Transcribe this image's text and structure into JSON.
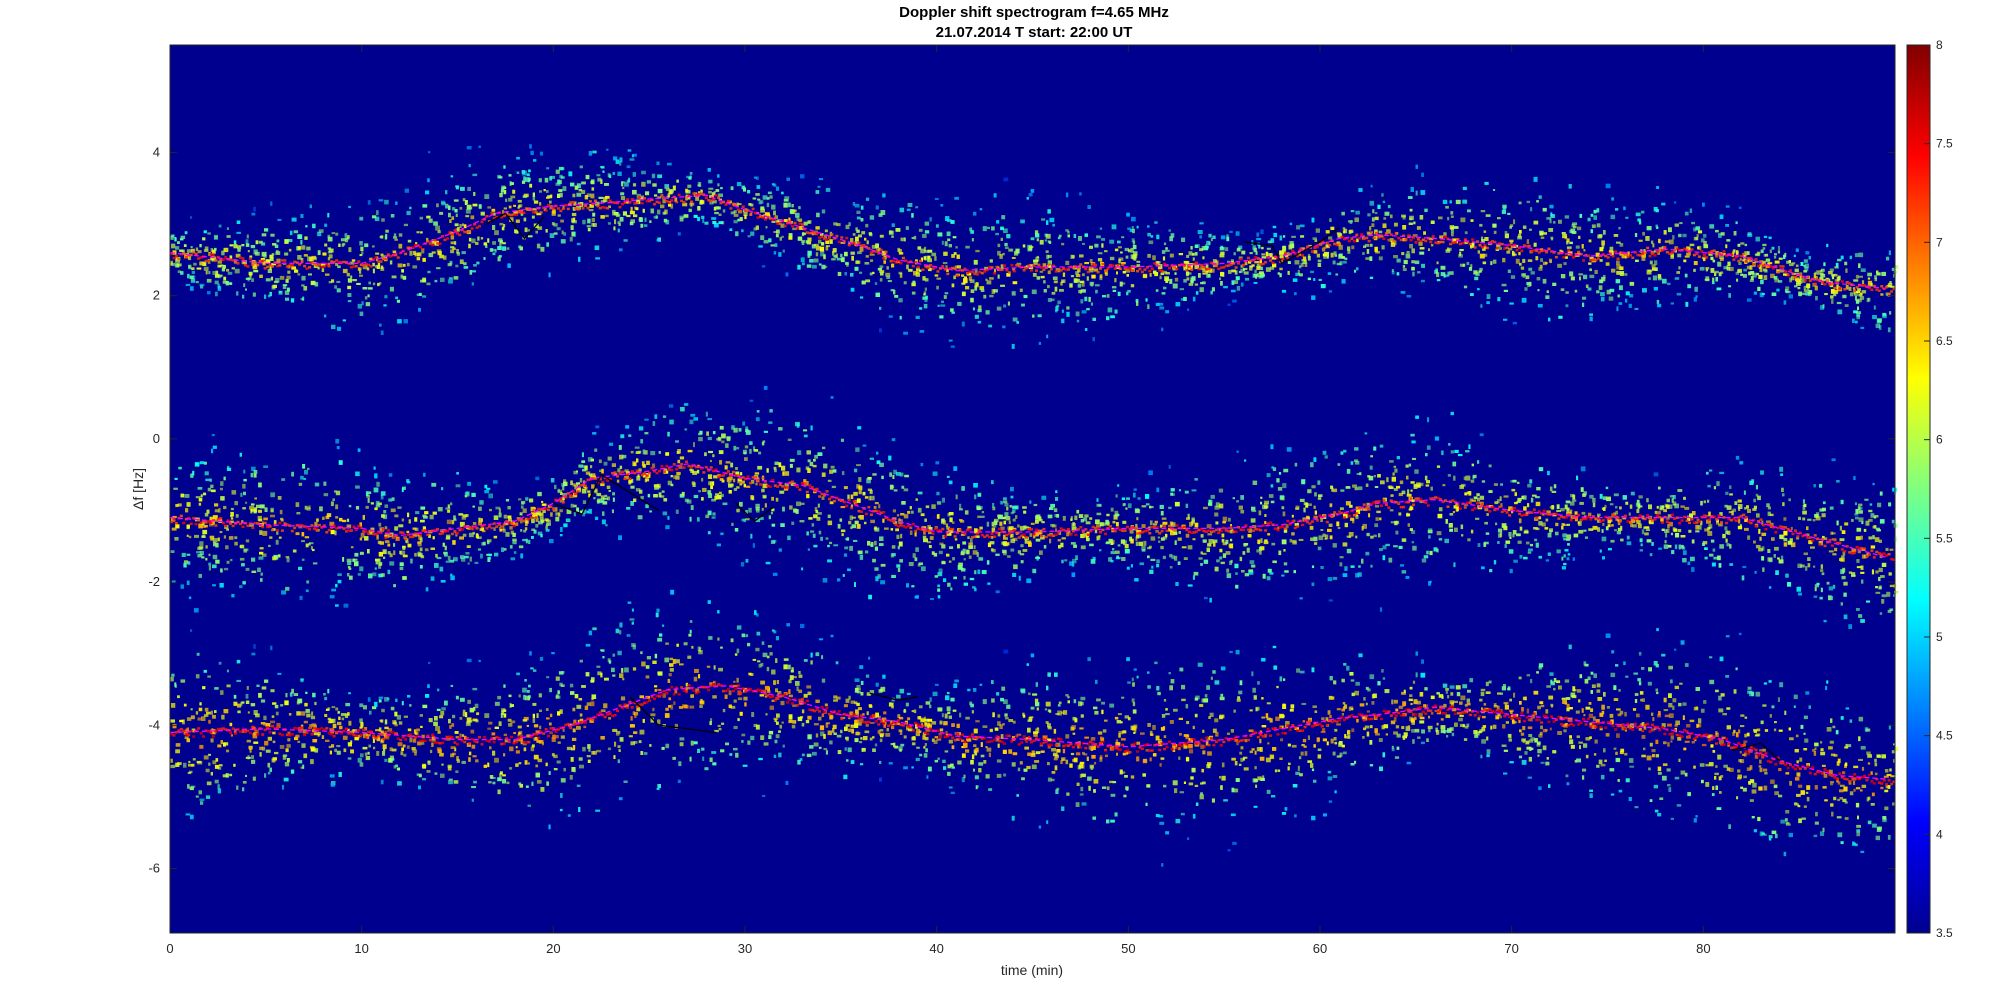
{
  "chart_data": {
    "type": "heatmap",
    "title": "Doppler shift spectrogram f=4.65 MHz",
    "subtitle": "21.07.2014   T start: 22:00 UT",
    "xlabel": "time (min)",
    "ylabel": "Δf [Hz]",
    "xlim": [
      0,
      90
    ],
    "ylim": [
      -6.9,
      5.5
    ],
    "x_ticks": [
      0,
      10,
      20,
      30,
      40,
      50,
      60,
      70,
      80
    ],
    "y_ticks": [
      4,
      2,
      0,
      -2,
      -4,
      -6
    ],
    "colormap": "jet",
    "background_color": "#00008f",
    "colorbar": {
      "range": [
        3.5,
        8
      ],
      "ticks": [
        "8",
        "7.5",
        "7",
        "6.5",
        "6",
        "5.5",
        "5",
        "4.5",
        "4",
        "3.5"
      ]
    },
    "traces": [
      {
        "color": "#ff00ff",
        "style": "dashed",
        "points": [
          [
            0,
            2.6
          ],
          [
            5,
            2.45
          ],
          [
            10,
            2.45
          ],
          [
            12,
            2.6
          ],
          [
            15,
            2.9
          ],
          [
            17,
            3.15
          ],
          [
            20,
            3.25
          ],
          [
            23,
            3.3
          ],
          [
            25,
            3.35
          ],
          [
            28,
            3.4
          ],
          [
            30,
            3.2
          ],
          [
            33,
            2.95
          ],
          [
            36,
            2.7
          ],
          [
            38,
            2.5
          ],
          [
            41,
            2.35
          ],
          [
            45,
            2.4
          ],
          [
            50,
            2.4
          ],
          [
            55,
            2.45
          ],
          [
            58,
            2.55
          ],
          [
            61,
            2.8
          ],
          [
            63,
            2.85
          ],
          [
            66,
            2.8
          ],
          [
            70,
            2.7
          ],
          [
            74,
            2.55
          ],
          [
            78,
            2.65
          ],
          [
            82,
            2.55
          ],
          [
            86,
            2.2
          ],
          [
            89.5,
            2.1
          ]
        ]
      },
      {
        "color": "#ff00ff",
        "style": "dashed",
        "points": [
          [
            0,
            -1.1
          ],
          [
            5,
            -1.2
          ],
          [
            10,
            -1.25
          ],
          [
            12,
            -1.35
          ],
          [
            15,
            -1.25
          ],
          [
            18,
            -1.15
          ],
          [
            20,
            -0.9
          ],
          [
            22,
            -0.55
          ],
          [
            25,
            -0.45
          ],
          [
            27,
            -0.35
          ],
          [
            30,
            -0.55
          ],
          [
            33,
            -0.65
          ],
          [
            36,
            -0.95
          ],
          [
            38,
            -1.15
          ],
          [
            40,
            -1.3
          ],
          [
            45,
            -1.3
          ],
          [
            50,
            -1.25
          ],
          [
            55,
            -1.25
          ],
          [
            58,
            -1.2
          ],
          [
            61,
            -1.05
          ],
          [
            63,
            -0.9
          ],
          [
            66,
            -0.85
          ],
          [
            70,
            -1.0
          ],
          [
            74,
            -1.1
          ],
          [
            78,
            -1.1
          ],
          [
            82,
            -1.1
          ],
          [
            86,
            -1.4
          ],
          [
            89.5,
            -1.65
          ]
        ]
      },
      {
        "color": "#ff00ff",
        "style": "dashed",
        "points": [
          [
            0,
            -4.1
          ],
          [
            5,
            -4.05
          ],
          [
            10,
            -4.1
          ],
          [
            15,
            -4.2
          ],
          [
            18,
            -4.2
          ],
          [
            21,
            -4.0
          ],
          [
            24,
            -3.7
          ],
          [
            26,
            -3.5
          ],
          [
            29,
            -3.45
          ],
          [
            32,
            -3.6
          ],
          [
            35,
            -3.85
          ],
          [
            38,
            -3.95
          ],
          [
            41,
            -4.15
          ],
          [
            45,
            -4.2
          ],
          [
            50,
            -4.3
          ],
          [
            55,
            -4.2
          ],
          [
            58,
            -4.05
          ],
          [
            61,
            -3.9
          ],
          [
            63,
            -3.85
          ],
          [
            66,
            -3.75
          ],
          [
            70,
            -3.85
          ],
          [
            74,
            -3.95
          ],
          [
            78,
            -4.05
          ],
          [
            81,
            -4.2
          ],
          [
            84,
            -4.5
          ],
          [
            87,
            -4.7
          ],
          [
            89.5,
            -4.75
          ]
        ]
      },
      {
        "color": "#000000",
        "style": "solid",
        "points": [
          [
            16.5,
            3.0
          ],
          [
            17.5,
            3.15
          ],
          [
            18.5,
            2.8
          ],
          [
            19.5,
            3.1
          ]
        ]
      },
      {
        "color": "#000000",
        "style": "solid",
        "points": [
          [
            56,
            2.75
          ],
          [
            57.5,
            2.7
          ],
          [
            58,
            2.45
          ],
          [
            59,
            2.6
          ],
          [
            60,
            2.75
          ],
          [
            61,
            2.95
          ]
        ]
      },
      {
        "color": "#000000",
        "style": "solid",
        "points": [
          [
            20,
            -0.9
          ],
          [
            21.5,
            -1.05
          ],
          [
            22.5,
            -0.5
          ],
          [
            24,
            -0.75
          ],
          [
            25.5,
            -1.0
          ]
        ]
      },
      {
        "color": "#000000",
        "style": "solid",
        "points": [
          [
            29.5,
            -0.9
          ],
          [
            30.5,
            -1.15
          ],
          [
            31.5,
            -0.95
          ]
        ]
      },
      {
        "color": "#000000",
        "style": "solid",
        "points": [
          [
            24,
            -3.6
          ],
          [
            25.5,
            -4.0
          ],
          [
            27,
            -4.05
          ],
          [
            28.5,
            -4.1
          ]
        ]
      },
      {
        "color": "#000000",
        "style": "solid",
        "points": [
          [
            36.5,
            -3.55
          ],
          [
            38,
            -3.65
          ],
          [
            39,
            -3.6
          ]
        ]
      },
      {
        "color": "#000000",
        "style": "solid",
        "points": [
          [
            81.5,
            -4.35
          ],
          [
            83,
            -4.25
          ],
          [
            84,
            -4.5
          ]
        ]
      }
    ],
    "bands": [
      {
        "center": [
          [
            0,
            2.6
          ],
          [
            5,
            2.45
          ],
          [
            10,
            2.45
          ],
          [
            12,
            2.6
          ],
          [
            15,
            2.9
          ],
          [
            17,
            3.15
          ],
          [
            20,
            3.25
          ],
          [
            23,
            3.3
          ],
          [
            25,
            3.35
          ],
          [
            28,
            3.4
          ],
          [
            30,
            3.2
          ],
          [
            33,
            2.95
          ],
          [
            36,
            2.7
          ],
          [
            38,
            2.5
          ],
          [
            41,
            2.35
          ],
          [
            45,
            2.4
          ],
          [
            50,
            2.4
          ],
          [
            55,
            2.45
          ],
          [
            58,
            2.55
          ],
          [
            61,
            2.8
          ],
          [
            63,
            2.85
          ],
          [
            66,
            2.8
          ],
          [
            70,
            2.7
          ],
          [
            74,
            2.55
          ],
          [
            78,
            2.65
          ],
          [
            82,
            2.55
          ],
          [
            86,
            2.2
          ],
          [
            89.5,
            2.1
          ]
        ],
        "width": 0.55,
        "intensity": 0.75
      },
      {
        "center": [
          [
            0,
            -1.1
          ],
          [
            5,
            -1.2
          ],
          [
            10,
            -1.25
          ],
          [
            12,
            -1.35
          ],
          [
            15,
            -1.25
          ],
          [
            18,
            -1.15
          ],
          [
            20,
            -0.9
          ],
          [
            22,
            -0.55
          ],
          [
            25,
            -0.45
          ],
          [
            27,
            -0.35
          ],
          [
            30,
            -0.55
          ],
          [
            33,
            -0.65
          ],
          [
            36,
            -0.95
          ],
          [
            38,
            -1.15
          ],
          [
            40,
            -1.3
          ],
          [
            45,
            -1.3
          ],
          [
            50,
            -1.25
          ],
          [
            55,
            -1.25
          ],
          [
            58,
            -1.2
          ],
          [
            61,
            -1.05
          ],
          [
            63,
            -0.9
          ],
          [
            66,
            -0.85
          ],
          [
            70,
            -1.0
          ],
          [
            74,
            -1.1
          ],
          [
            78,
            -1.1
          ],
          [
            82,
            -1.1
          ],
          [
            86,
            -1.4
          ],
          [
            89.5,
            -1.65
          ]
        ],
        "width": 0.65,
        "intensity": 0.78
      },
      {
        "center": [
          [
            0,
            -4.1
          ],
          [
            5,
            -4.05
          ],
          [
            10,
            -4.1
          ],
          [
            15,
            -4.2
          ],
          [
            18,
            -4.2
          ],
          [
            21,
            -4.0
          ],
          [
            24,
            -3.7
          ],
          [
            26,
            -3.5
          ],
          [
            29,
            -3.45
          ],
          [
            32,
            -3.6
          ],
          [
            35,
            -3.85
          ],
          [
            38,
            -3.95
          ],
          [
            41,
            -4.15
          ],
          [
            45,
            -4.2
          ],
          [
            50,
            -4.3
          ],
          [
            55,
            -4.2
          ],
          [
            58,
            -4.05
          ],
          [
            61,
            -3.9
          ],
          [
            63,
            -3.85
          ],
          [
            66,
            -3.75
          ],
          [
            70,
            -3.85
          ],
          [
            74,
            -3.95
          ],
          [
            78,
            -4.05
          ],
          [
            81,
            -4.2
          ],
          [
            84,
            -4.5
          ],
          [
            87,
            -4.7
          ],
          [
            89.5,
            -4.75
          ]
        ],
        "width": 0.75,
        "intensity": 0.9
      }
    ]
  }
}
